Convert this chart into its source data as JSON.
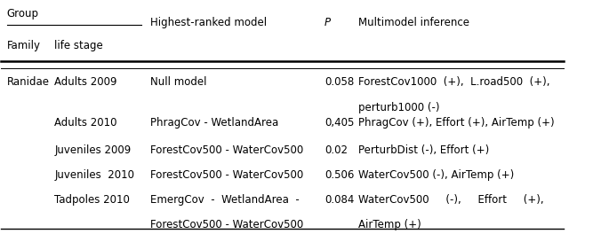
{
  "figsize": [
    6.67,
    2.64
  ],
  "dpi": 100,
  "bg_color": "white",
  "header_group": "Group",
  "header_family": "Family",
  "header_lifestage": "life stage",
  "header_model": "Highest-ranked model",
  "header_p": "P",
  "header_multi": "Multimodel inference",
  "rows": [
    {
      "family": "Ranidae",
      "lifestage": "Adults 2009",
      "model": "Null model",
      "p": "0.058",
      "inference_line1": "ForestCov1000  (+),  L.road500  (+),",
      "inference_line2": "perturb1000 (-)"
    },
    {
      "family": "",
      "lifestage": "Adults 2010",
      "model": "PhragCov - WetlandArea",
      "p": "0,405",
      "inference_line1": "PhragCov (+), Effort (+), AirTemp (+)",
      "inference_line2": ""
    },
    {
      "family": "",
      "lifestage": "Juveniles 2009",
      "model": "ForestCov500 - WaterCov500",
      "p": "0.02",
      "inference_line1": "PerturbDist (-), Effort (+)",
      "inference_line2": ""
    },
    {
      "family": "",
      "lifestage": "Juveniles  2010",
      "model": "ForestCov500 - WaterCov500",
      "p": "0.506",
      "inference_line1": "WaterCov500 (-), AirTemp (+)",
      "inference_line2": ""
    },
    {
      "family": "",
      "lifestage": "Tadpoles 2010",
      "model": "EmergCov  -  WetlandArea  -",
      "p": "0.084",
      "inference_line1": "WaterCov500     (-),     Effort     (+),",
      "inference_line2": ""
    },
    {
      "family": "",
      "lifestage": "",
      "model": "ForestCov500 - WaterCov500",
      "p": "",
      "inference_line1": "AirTemp (+)",
      "inference_line2": ""
    }
  ],
  "col_x": {
    "family": 0.01,
    "lifestage": 0.095,
    "model": 0.265,
    "p": 0.575,
    "inference": 0.635
  },
  "font_size": 8.5
}
